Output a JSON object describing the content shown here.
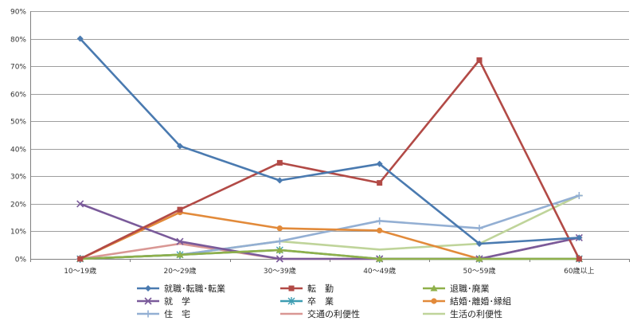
{
  "chart_data": {
    "type": "line",
    "title": "",
    "xlabel": "",
    "ylabel": "",
    "categories": [
      "10〜19歳",
      "20〜29歳",
      "30〜39歳",
      "40〜49歳",
      "50〜59歳",
      "60歳以上"
    ],
    "ylim": [
      0,
      90
    ],
    "yticks": [
      "0%",
      "10%",
      "20%",
      "30%",
      "40%",
      "50%",
      "60%",
      "70%",
      "80%",
      "90%"
    ],
    "grid": true,
    "legend_position": "bottom",
    "series": [
      {
        "name": "就職･転職･転業",
        "color": "#4a7ab0",
        "marker": "diamond",
        "values": [
          80.0,
          41.0,
          28.5,
          34.5,
          5.5,
          7.7
        ]
      },
      {
        "name": "転　勤",
        "color": "#b24a46",
        "marker": "square",
        "values": [
          0.0,
          17.9,
          34.9,
          27.6,
          72.2,
          0.0
        ]
      },
      {
        "name": "退職･廃業",
        "color": "#8fb04a",
        "marker": "triangle",
        "values": [
          0.0,
          1.5,
          3.2,
          0.0,
          0.0,
          0.0
        ]
      },
      {
        "name": "就　学",
        "color": "#7a5a9a",
        "marker": "x",
        "values": [
          20.0,
          6.3,
          0.0,
          0.0,
          0.0,
          7.7
        ]
      },
      {
        "name": "卒　業",
        "color": "#3e9db2",
        "marker": "star",
        "values": [
          0.0,
          1.5,
          3.2,
          0.0,
          0.0,
          0.0
        ]
      },
      {
        "name": "結婚･離婚･縁組",
        "color": "#e28a3a",
        "marker": "circle",
        "values": [
          0.0,
          16.9,
          11.1,
          10.3,
          0.0,
          0.0
        ]
      },
      {
        "name": "住　宅",
        "color": "#93afd3",
        "marker": "plus",
        "values": [
          0.0,
          1.5,
          6.4,
          13.8,
          11.1,
          23.0
        ]
      },
      {
        "name": "交通の利便性",
        "color": "#d99794",
        "marker": "dash",
        "values": [
          0.0,
          5.5,
          0.0,
          0.0,
          0.0,
          7.7
        ]
      },
      {
        "name": "生活の利便性",
        "color": "#bfd49a",
        "marker": "dash",
        "values": [
          0.0,
          1.5,
          6.4,
          3.4,
          5.5,
          23.0
        ]
      }
    ]
  }
}
